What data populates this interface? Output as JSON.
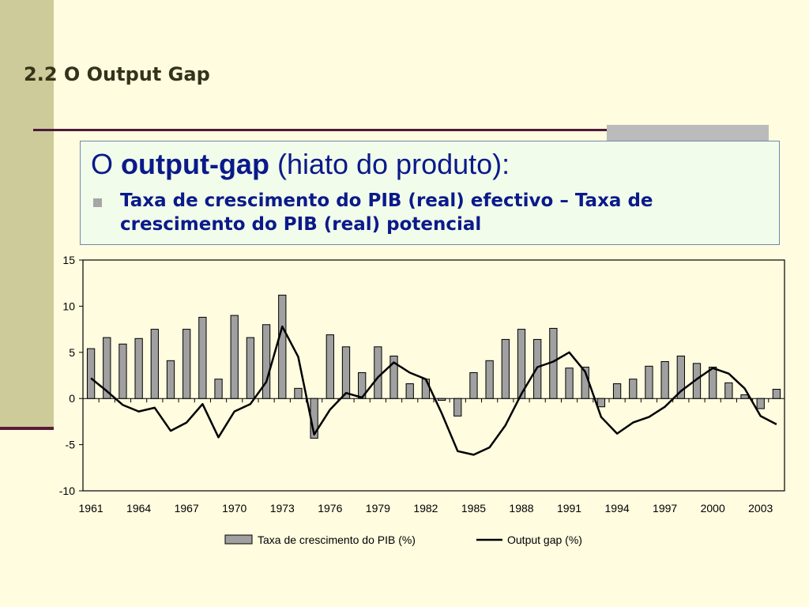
{
  "slide": {
    "title": "2.2 O Output Gap",
    "heading_prefix": "O ",
    "heading_bold": "output-gap",
    "heading_suffix": " (hiato do produto):",
    "bullet": "Taxa de crescimento do PIB (real) efectivo – Taxa de crescimento do PIB (real) potencial"
  },
  "colors": {
    "background": "#FFFCE0",
    "bar_fill": "#A0A0A0",
    "line": "#000000",
    "heading_text": "#0A1A8A"
  },
  "chart_data": {
    "type": "bar",
    "x": [
      1961,
      1962,
      1963,
      1964,
      1965,
      1966,
      1967,
      1968,
      1969,
      1970,
      1971,
      1972,
      1973,
      1974,
      1975,
      1976,
      1977,
      1978,
      1979,
      1980,
      1981,
      1982,
      1983,
      1984,
      1985,
      1986,
      1987,
      1988,
      1989,
      1990,
      1991,
      1992,
      1993,
      1994,
      1995,
      1996,
      1997,
      1998,
      1999,
      2000,
      2001,
      2002,
      2003,
      2004
    ],
    "x_tick_labels": [
      "1961",
      "1964",
      "1967",
      "1970",
      "1973",
      "1976",
      "1979",
      "1982",
      "1985",
      "1988",
      "1991",
      "1994",
      "1997",
      "2000",
      "2003"
    ],
    "ylim": [
      -10,
      15
    ],
    "y_ticks": [
      15,
      10,
      5,
      0,
      -5,
      -10
    ],
    "grid": false,
    "legend_position": "bottom",
    "series": [
      {
        "name": "Taxa de crescimento do PIB (%)",
        "type": "bar",
        "values": [
          5.4,
          6.6,
          5.9,
          6.5,
          7.5,
          4.1,
          7.5,
          8.8,
          2.1,
          9.0,
          6.6,
          8.0,
          11.2,
          1.1,
          -4.3,
          6.9,
          5.6,
          2.8,
          5.6,
          4.6,
          1.6,
          2.1,
          -0.2,
          -1.9,
          2.8,
          4.1,
          6.4,
          7.5,
          6.4,
          7.6,
          3.3,
          3.4,
          -0.9,
          1.6,
          2.1,
          3.5,
          4.0,
          4.6,
          3.8,
          3.4,
          1.7,
          0.4,
          -1.1,
          1.0
        ]
      },
      {
        "name": "Output gap (%)",
        "type": "line",
        "values": [
          2.2,
          0.8,
          -0.7,
          -1.4,
          -1.0,
          -3.5,
          -2.6,
          -0.6,
          -4.2,
          -1.4,
          -0.6,
          1.8,
          7.8,
          4.5,
          -3.9,
          -1.2,
          0.6,
          0.1,
          2.3,
          3.9,
          2.8,
          2.1,
          -1.6,
          -5.7,
          -6.1,
          -5.3,
          -2.9,
          0.5,
          3.4,
          4.0,
          5.0,
          2.9,
          -2.0,
          -3.8,
          -2.6,
          -2.0,
          -0.9,
          0.8,
          2.1,
          3.3,
          2.7,
          1.1,
          -1.9,
          -2.8
        ]
      }
    ]
  }
}
